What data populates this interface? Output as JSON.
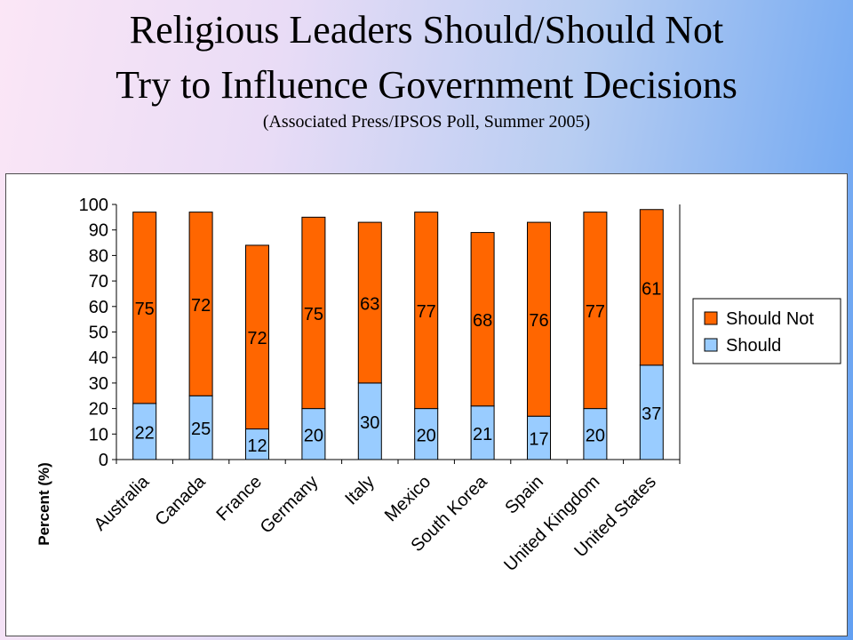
{
  "title": {
    "line1": "Religious Leaders Should/Should Not",
    "line2": "Try to Influence Government Decisions",
    "subtitle": "(Associated Press/IPSOS Poll, Summer 2005)"
  },
  "colors": {
    "should_not": "#ff6600",
    "should": "#99ccff",
    "outline": "#000000"
  },
  "chart_data": {
    "type": "bar",
    "stacked": true,
    "title": "Religious Leaders Should/Should Not Try to Influence Government Decisions",
    "subtitle": "(Associated Press/IPSOS Poll, Summer 2005)",
    "xlabel": "",
    "ylabel": "Percent (%)",
    "ylim": [
      0,
      100
    ],
    "yticks": [
      0,
      10,
      20,
      30,
      40,
      50,
      60,
      70,
      80,
      90,
      100
    ],
    "grid": false,
    "legend_position": "right",
    "categories": [
      "Australia",
      "Canada",
      "France",
      "Germany",
      "Italy",
      "Mexico",
      "South Korea",
      "Spain",
      "United Kingdom",
      "United States"
    ],
    "series": [
      {
        "name": "Should",
        "color": "#99ccff",
        "values": [
          22,
          25,
          12,
          20,
          30,
          20,
          21,
          17,
          20,
          37
        ]
      },
      {
        "name": "Should Not",
        "color": "#ff6600",
        "values": [
          75,
          72,
          72,
          75,
          63,
          77,
          68,
          76,
          77,
          61
        ]
      }
    ],
    "legend": [
      "Should Not",
      "Should"
    ]
  }
}
